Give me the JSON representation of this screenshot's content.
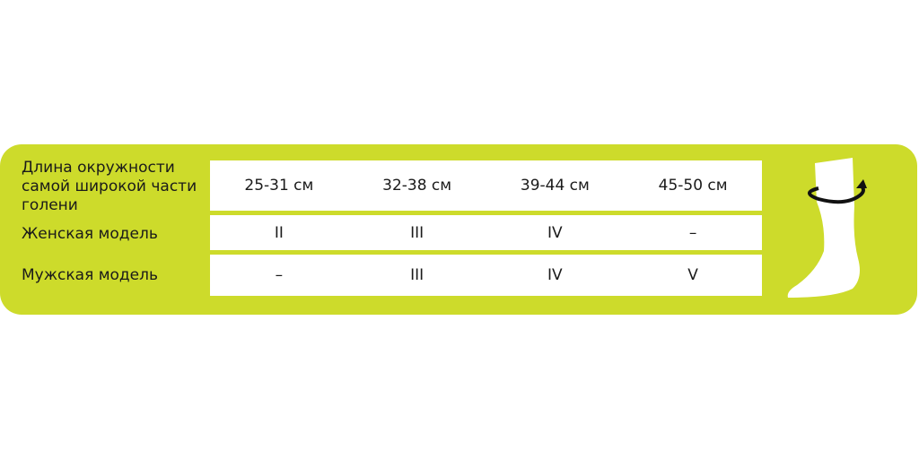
{
  "colors": {
    "panel": "#cddb2b",
    "cells": "#ffffff"
  },
  "table": {
    "rows": [
      {
        "label": "Длина окружности самой широкой части голени",
        "label_lines": [
          "Длина окружности",
          "самой широкой части",
          "голени"
        ],
        "values": [
          "25-31 см",
          "32-38 см",
          "39-44 см",
          "45-50 см"
        ]
      },
      {
        "label": "Женская модель",
        "values": [
          "II",
          "III",
          "IV",
          "–"
        ]
      },
      {
        "label": "Мужская модель",
        "values": [
          "–",
          "III",
          "IV",
          "V"
        ]
      }
    ]
  },
  "icon": "sock-with-circumference-arrow-icon"
}
